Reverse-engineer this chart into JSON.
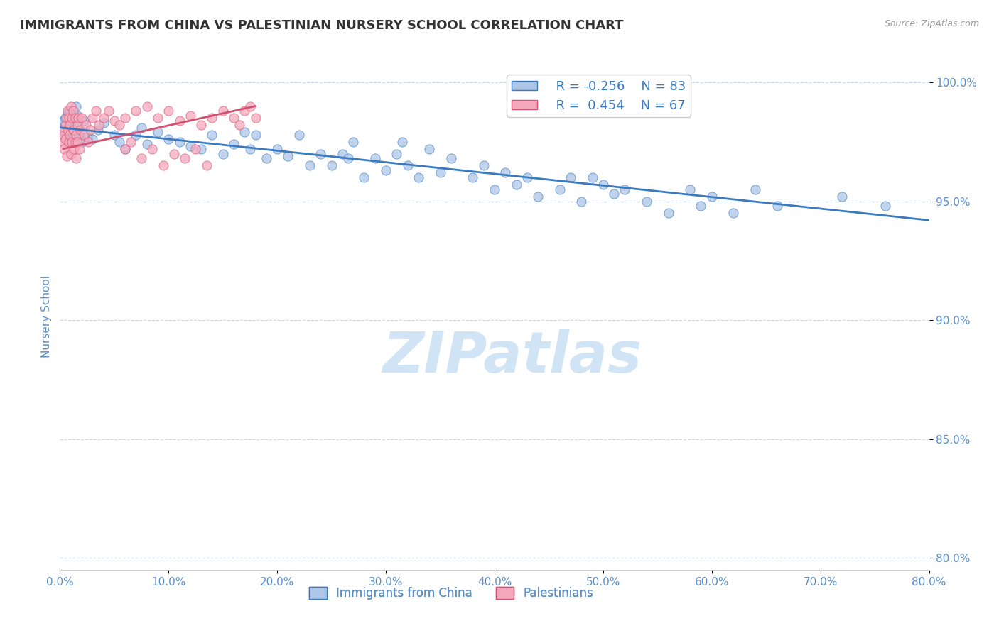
{
  "title": "IMMIGRANTS FROM CHINA VS PALESTINIAN NURSERY SCHOOL CORRELATION CHART",
  "source": "Source: ZipAtlas.com",
  "ylabel": "Nursery School",
  "legend_label1": "Immigrants from China",
  "legend_label2": "Palestinians",
  "r1": -0.256,
  "n1": 83,
  "r2": 0.454,
  "n2": 67,
  "color1": "#aec6e8",
  "color2": "#f4a8bc",
  "trendline_color1": "#3a7abf",
  "trendline_color2": "#d45070",
  "xlim": [
    0.0,
    0.8
  ],
  "ylim": [
    0.795,
    1.008
  ],
  "yticks": [
    0.8,
    0.85,
    0.9,
    0.95,
    1.0
  ],
  "xticks": [
    0.0,
    0.1,
    0.2,
    0.3,
    0.4,
    0.5,
    0.6,
    0.7,
    0.8
  ],
  "watermark": "ZIPatlas",
  "watermark_color": "#d0e4f5",
  "background_color": "#ffffff",
  "title_color": "#333333",
  "tick_color": "#5b8ec4",
  "grid_color": "#c8d8e8",
  "blue_trendline_x0": 0.0,
  "blue_trendline_y0": 0.981,
  "blue_trendline_x1": 0.8,
  "blue_trendline_y1": 0.942,
  "pink_trendline_x0": 0.003,
  "pink_trendline_y0": 0.972,
  "pink_trendline_x1": 0.18,
  "pink_trendline_y1": 0.99,
  "blue_points_x": [
    0.002,
    0.003,
    0.004,
    0.005,
    0.006,
    0.007,
    0.008,
    0.009,
    0.01,
    0.011,
    0.012,
    0.013,
    0.014,
    0.015,
    0.016,
    0.018,
    0.02,
    0.022,
    0.025,
    0.03,
    0.035,
    0.04,
    0.05,
    0.055,
    0.06,
    0.07,
    0.075,
    0.08,
    0.09,
    0.1,
    0.11,
    0.12,
    0.13,
    0.14,
    0.15,
    0.16,
    0.17,
    0.175,
    0.18,
    0.19,
    0.2,
    0.21,
    0.22,
    0.23,
    0.24,
    0.25,
    0.26,
    0.265,
    0.27,
    0.28,
    0.29,
    0.3,
    0.31,
    0.315,
    0.32,
    0.33,
    0.34,
    0.35,
    0.36,
    0.38,
    0.39,
    0.4,
    0.41,
    0.42,
    0.43,
    0.44,
    0.46,
    0.47,
    0.48,
    0.49,
    0.5,
    0.51,
    0.52,
    0.54,
    0.56,
    0.58,
    0.59,
    0.6,
    0.62,
    0.64,
    0.66,
    0.72,
    0.76
  ],
  "blue_points_y": [
    0.983,
    0.984,
    0.979,
    0.985,
    0.978,
    0.987,
    0.976,
    0.988,
    0.983,
    0.98,
    0.985,
    0.978,
    0.982,
    0.99,
    0.986,
    0.978,
    0.975,
    0.984,
    0.977,
    0.976,
    0.98,
    0.983,
    0.978,
    0.975,
    0.972,
    0.978,
    0.981,
    0.974,
    0.979,
    0.976,
    0.975,
    0.973,
    0.972,
    0.978,
    0.97,
    0.974,
    0.979,
    0.972,
    0.978,
    0.968,
    0.972,
    0.969,
    0.978,
    0.965,
    0.97,
    0.965,
    0.97,
    0.968,
    0.975,
    0.96,
    0.968,
    0.963,
    0.97,
    0.975,
    0.965,
    0.96,
    0.972,
    0.962,
    0.968,
    0.96,
    0.965,
    0.955,
    0.962,
    0.957,
    0.96,
    0.952,
    0.955,
    0.96,
    0.95,
    0.96,
    0.957,
    0.953,
    0.955,
    0.95,
    0.945,
    0.955,
    0.948,
    0.952,
    0.945,
    0.955,
    0.948,
    0.952,
    0.948
  ],
  "pink_points_x": [
    0.002,
    0.003,
    0.004,
    0.004,
    0.005,
    0.005,
    0.006,
    0.006,
    0.007,
    0.007,
    0.008,
    0.008,
    0.009,
    0.009,
    0.01,
    0.01,
    0.011,
    0.011,
    0.012,
    0.012,
    0.013,
    0.013,
    0.014,
    0.014,
    0.015,
    0.015,
    0.016,
    0.016,
    0.017,
    0.018,
    0.019,
    0.02,
    0.022,
    0.024,
    0.026,
    0.028,
    0.03,
    0.033,
    0.036,
    0.04,
    0.045,
    0.05,
    0.055,
    0.06,
    0.07,
    0.08,
    0.09,
    0.1,
    0.11,
    0.12,
    0.13,
    0.14,
    0.15,
    0.16,
    0.165,
    0.17,
    0.175,
    0.18,
    0.06,
    0.065,
    0.075,
    0.085,
    0.095,
    0.105,
    0.115,
    0.125,
    0.135
  ],
  "pink_points_y": [
    0.98,
    0.975,
    0.978,
    0.972,
    0.982,
    0.976,
    0.985,
    0.969,
    0.988,
    0.98,
    0.975,
    0.985,
    0.978,
    0.982,
    0.97,
    0.99,
    0.975,
    0.985,
    0.98,
    0.988,
    0.972,
    0.98,
    0.975,
    0.985,
    0.968,
    0.978,
    0.982,
    0.975,
    0.985,
    0.972,
    0.98,
    0.985,
    0.978,
    0.982,
    0.975,
    0.98,
    0.985,
    0.988,
    0.982,
    0.985,
    0.988,
    0.984,
    0.982,
    0.985,
    0.988,
    0.99,
    0.985,
    0.988,
    0.984,
    0.986,
    0.982,
    0.985,
    0.988,
    0.985,
    0.982,
    0.988,
    0.99,
    0.985,
    0.972,
    0.975,
    0.968,
    0.972,
    0.965,
    0.97,
    0.968,
    0.972,
    0.965
  ]
}
